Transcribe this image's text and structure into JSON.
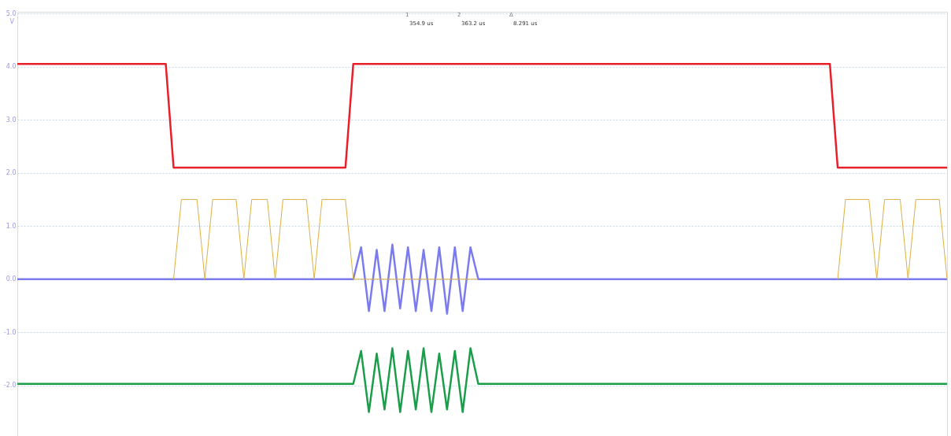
{
  "chart_data": {
    "type": "line",
    "ylabel": "V",
    "categories": [
      null,
      null,
      null,
      null,
      null,
      null,
      null,
      null,
      null,
      null,
      null,
      null,
      null,
      null,
      null,
      null,
      null,
      null,
      null,
      null,
      null,
      null,
      null,
      null,
      null,
      null,
      null,
      null,
      null,
      null,
      null,
      null,
      null,
      null,
      null,
      null,
      null,
      null,
      null,
      null,
      null,
      null,
      null,
      null,
      null,
      null,
      null,
      null,
      null,
      null,
      null,
      null,
      null,
      null,
      null,
      null,
      null,
      null,
      null,
      null,
      null,
      null,
      null,
      null,
      null,
      null,
      null,
      null,
      null,
      null,
      null,
      null,
      null,
      null,
      null,
      null,
      null,
      null,
      null,
      null,
      null,
      null,
      null,
      null,
      null,
      null,
      null,
      null,
      null,
      null,
      null,
      null,
      null,
      null,
      null,
      null,
      null,
      null,
      null,
      null,
      null,
      null,
      null,
      null,
      null,
      null,
      null,
      null,
      null,
      null,
      null,
      null,
      null,
      null,
      null,
      null,
      null,
      null,
      null,
      null
    ],
    "ylim": [
      -2.95,
      5.03
    ],
    "yticks": [
      {
        "value": 5,
        "label": "5.0"
      },
      {
        "value": 4,
        "label": "4.0"
      },
      {
        "value": 3,
        "label": "3.0"
      },
      {
        "value": 2,
        "label": "2.0"
      },
      {
        "value": 1,
        "label": "1.0"
      },
      {
        "value": 0,
        "label": "0.0"
      },
      {
        "value": -1,
        "label": "-1.0"
      },
      {
        "value": -2,
        "label": "-2.0"
      }
    ],
    "tick_labels": "y",
    "grid": "y",
    "marker": "none",
    "line_style": "solid",
    "series": [
      {
        "color": "#dcb040",
        "values": [
          null,
          null,
          null,
          null,
          null,
          null,
          null,
          null,
          null,
          null,
          null,
          null,
          null,
          null,
          null,
          null,
          null,
          null,
          null,
          null,
          0,
          1.5,
          1.5,
          1.5,
          0,
          1.5,
          1.5,
          1.5,
          1.5,
          0,
          1.5,
          1.5,
          1.5,
          0,
          1.5,
          1.5,
          1.5,
          1.5,
          0,
          1.5,
          1.5,
          1.5,
          1.5,
          0,
          0,
          0,
          0,
          0,
          0,
          0,
          0,
          0,
          0,
          0,
          0,
          0,
          0,
          0,
          0,
          0,
          null,
          null,
          null,
          null,
          null,
          null,
          null,
          null,
          null,
          null,
          null,
          null,
          null,
          null,
          null,
          null,
          null,
          null,
          null,
          null,
          null,
          null,
          null,
          null,
          null,
          null,
          null,
          null,
          null,
          null,
          null,
          null,
          null,
          null,
          null,
          null,
          null,
          null,
          null,
          null,
          null,
          null,
          null,
          null,
          null,
          0,
          1.5,
          1.5,
          1.5,
          1.5,
          0,
          1.5,
          1.5,
          1.5,
          0,
          1.5,
          1.5,
          1.5,
          1.5,
          0
        ]
      },
      {
        "color": "#e8202a",
        "values": [
          4.05,
          4.05,
          4.05,
          4.05,
          4.05,
          4.05,
          4.05,
          4.05,
          4.05,
          4.05,
          4.05,
          4.05,
          4.05,
          4.05,
          4.05,
          4.05,
          4.05,
          4.05,
          4.05,
          4.05,
          2.1,
          2.1,
          2.1,
          2.1,
          2.1,
          2.1,
          2.1,
          2.1,
          2.1,
          2.1,
          2.1,
          2.1,
          2.1,
          2.1,
          2.1,
          2.1,
          2.1,
          2.1,
          2.1,
          2.1,
          2.1,
          2.1,
          2.1,
          4.05,
          4.05,
          4.05,
          4.05,
          4.05,
          4.05,
          4.05,
          4.05,
          4.05,
          4.05,
          4.05,
          4.05,
          4.05,
          4.05,
          4.05,
          4.05,
          4.05,
          4.05,
          4.05,
          4.05,
          4.05,
          4.05,
          4.05,
          4.05,
          4.05,
          4.05,
          4.05,
          4.05,
          4.05,
          4.05,
          4.05,
          4.05,
          4.05,
          4.05,
          4.05,
          4.05,
          4.05,
          4.05,
          4.05,
          4.05,
          4.05,
          4.05,
          4.05,
          4.05,
          4.05,
          4.05,
          4.05,
          4.05,
          4.05,
          4.05,
          4.05,
          4.05,
          4.05,
          4.05,
          4.05,
          4.05,
          4.05,
          4.05,
          4.05,
          4.05,
          4.05,
          4.05,
          2.1,
          2.1,
          2.1,
          2.1,
          2.1,
          2.1,
          2.1,
          2.1,
          2.1,
          2.1,
          2.1,
          2.1,
          2.1,
          2.1,
          2.1
        ]
      },
      {
        "color": "#7b7bf0",
        "values": [
          0,
          0,
          0,
          0,
          0,
          0,
          0,
          0,
          0,
          0,
          0,
          0,
          0,
          0,
          0,
          0,
          0,
          0,
          0,
          0,
          0,
          0,
          0,
          0,
          0,
          0,
          0,
          0,
          0,
          0,
          0,
          0,
          0,
          0,
          0,
          0,
          0,
          0,
          0,
          0,
          0,
          0,
          0,
          0,
          0.6,
          -0.6,
          0.55,
          -0.6,
          0.65,
          -0.55,
          0.6,
          -0.6,
          0.55,
          -0.6,
          0.6,
          -0.65,
          0.6,
          -0.6,
          0.6,
          0,
          0,
          0,
          0,
          0,
          0,
          0,
          0,
          0,
          0,
          0,
          0,
          0,
          0,
          0,
          0,
          0,
          0,
          0,
          0,
          0,
          0,
          0,
          0,
          0,
          0,
          0,
          0,
          0,
          0,
          0,
          0,
          0,
          0,
          0,
          0,
          0,
          0,
          0,
          0,
          0,
          0,
          0,
          0,
          0,
          0,
          0,
          0,
          0,
          0,
          0,
          0,
          0,
          0,
          0,
          0,
          0,
          0,
          0,
          0,
          0
        ]
      },
      {
        "color": "#1a9e4a",
        "values": [
          -1.97,
          -1.97,
          -1.97,
          -1.97,
          -1.97,
          -1.97,
          -1.97,
          -1.97,
          -1.97,
          -1.97,
          -1.97,
          -1.97,
          -1.97,
          -1.97,
          -1.97,
          -1.97,
          -1.97,
          -1.97,
          -1.97,
          -1.97,
          -1.97,
          -1.97,
          -1.97,
          -1.97,
          -1.97,
          -1.97,
          -1.97,
          -1.97,
          -1.97,
          -1.97,
          -1.97,
          -1.97,
          -1.97,
          -1.97,
          -1.97,
          -1.97,
          -1.97,
          -1.97,
          -1.97,
          -1.97,
          -1.97,
          -1.97,
          -1.97,
          -1.97,
          -1.35,
          -2.5,
          -1.4,
          -2.45,
          -1.3,
          -2.5,
          -1.35,
          -2.45,
          -1.3,
          -2.5,
          -1.4,
          -2.45,
          -1.35,
          -2.5,
          -1.3,
          -1.97,
          -1.97,
          -1.97,
          -1.97,
          -1.97,
          -1.97,
          -1.97,
          -1.97,
          -1.97,
          -1.97,
          -1.97,
          -1.97,
          -1.97,
          -1.97,
          -1.97,
          -1.97,
          -1.97,
          -1.97,
          -1.97,
          -1.97,
          -1.97,
          -1.97,
          -1.97,
          -1.97,
          -1.97,
          -1.97,
          -1.97,
          -1.97,
          -1.97,
          -1.97,
          -1.97,
          -1.97,
          -1.97,
          -1.97,
          -1.97,
          -1.97,
          -1.97,
          -1.97,
          -1.97,
          -1.97,
          -1.97,
          -1.97,
          -1.97,
          -1.97,
          -1.97,
          -1.97,
          -1.97,
          -1.97,
          -1.97,
          -1.97,
          -1.97,
          -1.97,
          -1.97,
          -1.97,
          -1.97,
          -1.97,
          -1.97,
          -1.97,
          -1.97,
          -1.97,
          -1.97
        ]
      }
    ],
    "annotations": [
      "1",
      "2",
      "Δ",
      "354.9 us",
      "363.2 us",
      "8.291 us"
    ]
  }
}
